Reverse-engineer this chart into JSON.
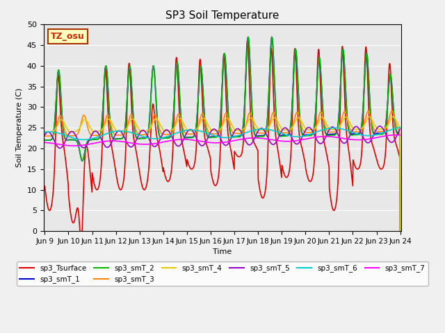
{
  "title": "SP3 Soil Temperature",
  "ylabel": "Soil Temperature (C)",
  "xlabel": "Time",
  "ylim": [
    0,
    50
  ],
  "background_color": "#E8E8E8",
  "fig_facecolor": "#F0F0F0",
  "annotation_text": "TZ_osu",
  "annotation_facecolor": "#FFFFC0",
  "annotation_edgecolor": "#AA3300",
  "annotation_textcolor": "#CC2200",
  "x_tick_labels": [
    "Jun 9",
    "Jun 10",
    "Jun 11",
    "Jun 12",
    "Jun 13",
    "Jun 14",
    "Jun 15",
    "Jun 16",
    "Jun 17",
    "Jun 18",
    "Jun 19",
    "Jun 20",
    "Jun 21",
    "Jun 22",
    "Jun 23",
    "Jun 24"
  ],
  "series": [
    {
      "name": "sp3_Tsurface",
      "color": "#DD0000",
      "lw": 1.2,
      "type": "surface"
    },
    {
      "name": "sp3_smT_1",
      "color": "#0000CC",
      "lw": 1.2,
      "type": "shallow",
      "amp": 12,
      "base": 22,
      "trend": 0.12,
      "phase": 0.05
    },
    {
      "name": "sp3_smT_2",
      "color": "#00BB00",
      "lw": 1.2,
      "type": "shallow",
      "amp": 10,
      "base": 22,
      "trend": 0.1,
      "phase": 0.08
    },
    {
      "name": "sp3_smT_3",
      "color": "#FF8800",
      "lw": 1.2,
      "type": "mid",
      "amp": 5,
      "base": 23,
      "trend": 0.08,
      "phase": 0.2
    },
    {
      "name": "sp3_smT_4",
      "color": "#DDCC00",
      "lw": 1.2,
      "type": "mid",
      "amp": 3,
      "base": 24,
      "trend": 0.05,
      "phase": 0.4
    },
    {
      "name": "sp3_smT_5",
      "color": "#9900CC",
      "lw": 1.2,
      "type": "deep",
      "amp": 2,
      "base": 22,
      "trend": 0.1,
      "phase": 0.7
    },
    {
      "name": "sp3_smT_6",
      "color": "#00CCCC",
      "lw": 1.2,
      "type": "vdeep",
      "amp": 1,
      "base": 23,
      "trend": 0.08,
      "phase": 1.2
    },
    {
      "name": "sp3_smT_7",
      "color": "#FF00FF",
      "lw": 1.2,
      "type": "vdeep",
      "amp": 0.5,
      "base": 21,
      "trend": 0.12,
      "phase": 2.0
    }
  ],
  "legend_order": [
    "sp3_Tsurface",
    "sp3_smT_1",
    "sp3_smT_2",
    "sp3_smT_3",
    "sp3_smT_4",
    "sp3_smT_5",
    "sp3_smT_6",
    "sp3_smT_7"
  ]
}
